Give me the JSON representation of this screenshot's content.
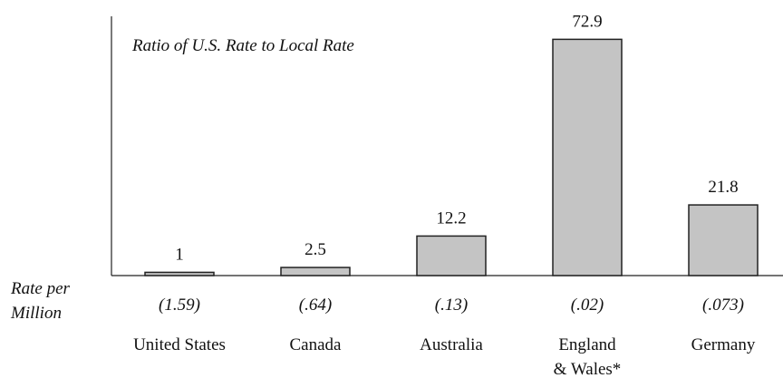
{
  "chart_data": {
    "type": "bar",
    "title": "Ratio of U.S. Rate to Local Rate",
    "categories": [
      "United States",
      "Canada",
      "Australia",
      "England\n& Wales*",
      "Germany"
    ],
    "values": [
      1,
      2.5,
      12.2,
      72.9,
      21.8
    ],
    "rate_title": "Rate per\nMillion",
    "rate_labels": [
      "(1.59)",
      "(.64)",
      "(.13)",
      "(.02)",
      "(.073)"
    ],
    "color": "#c4c4c4",
    "ylim": [
      0,
      80
    ]
  }
}
